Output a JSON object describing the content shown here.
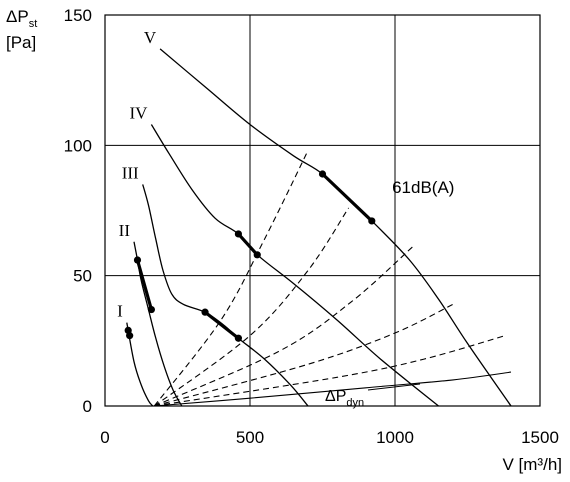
{
  "chart_data": {
    "type": "line",
    "title": "",
    "ylabel": {
      "symbol": "ΔP",
      "sub": "st",
      "unit": "[Pa]"
    },
    "xlabel": "V [m³/h]",
    "xlim": [
      0,
      1500
    ],
    "ylim": [
      0,
      150
    ],
    "x_ticks": [
      0,
      500,
      1000,
      1500
    ],
    "y_ticks": [
      0,
      50,
      100,
      150
    ],
    "grid": true,
    "series": [
      {
        "name": "I",
        "points": [
          [
            75,
            32
          ],
          [
            100,
            17
          ],
          [
            125,
            8
          ],
          [
            150,
            2
          ],
          [
            165,
            0
          ]
        ],
        "markers": [
          [
            80,
            29
          ],
          [
            85,
            27
          ]
        ]
      },
      {
        "name": "II",
        "points": [
          [
            100,
            63
          ],
          [
            112,
            56
          ],
          [
            125,
            48
          ],
          [
            150,
            37
          ],
          [
            175,
            26
          ],
          [
            205,
            15
          ],
          [
            235,
            6
          ],
          [
            265,
            0
          ]
        ],
        "markers": [
          [
            112,
            56
          ],
          [
            160,
            37
          ]
        ]
      },
      {
        "name": "III",
        "points": [
          [
            130,
            85
          ],
          [
            150,
            77
          ],
          [
            175,
            64
          ],
          [
            200,
            52
          ],
          [
            230,
            43
          ],
          [
            270,
            39
          ],
          [
            345,
            36
          ],
          [
            410,
            31
          ],
          [
            460,
            26
          ],
          [
            550,
            18
          ],
          [
            640,
            8
          ],
          [
            700,
            0
          ]
        ],
        "markers": [
          [
            345,
            36
          ],
          [
            460,
            26
          ]
        ]
      },
      {
        "name": "IV",
        "points": [
          [
            160,
            108
          ],
          [
            220,
            97
          ],
          [
            300,
            83
          ],
          [
            380,
            72
          ],
          [
            460,
            66
          ],
          [
            525,
            58
          ],
          [
            650,
            47
          ],
          [
            800,
            33
          ],
          [
            950,
            18
          ],
          [
            1150,
            0
          ]
        ],
        "markers": [
          [
            460,
            66
          ],
          [
            525,
            58
          ]
        ]
      },
      {
        "name": "V",
        "points": [
          [
            190,
            137
          ],
          [
            350,
            122
          ],
          [
            500,
            108
          ],
          [
            650,
            96
          ],
          [
            750,
            89
          ],
          [
            850,
            78
          ],
          [
            920,
            71
          ],
          [
            1050,
            56
          ],
          [
            1150,
            41
          ],
          [
            1250,
            24
          ],
          [
            1400,
            0
          ]
        ],
        "markers": [
          [
            750,
            89
          ],
          [
            920,
            71
          ]
        ]
      }
    ],
    "dashed_lines": [
      {
        "points": [
          [
            170,
            0
          ],
          [
            400,
            33
          ],
          [
            550,
            64
          ],
          [
            700,
            98
          ]
        ]
      },
      {
        "points": [
          [
            170,
            0
          ],
          [
            500,
            27
          ],
          [
            700,
            52
          ],
          [
            840,
            76
          ]
        ]
      },
      {
        "points": [
          [
            170,
            0
          ],
          [
            600,
            21
          ],
          [
            850,
            40
          ],
          [
            1060,
            61
          ]
        ]
      },
      {
        "points": [
          [
            170,
            0
          ],
          [
            700,
            16
          ],
          [
            1000,
            28
          ],
          [
            1200,
            39
          ]
        ]
      },
      {
        "points": [
          [
            170,
            0
          ],
          [
            800,
            11
          ],
          [
            1100,
            18
          ],
          [
            1380,
            27
          ]
        ]
      }
    ],
    "dynamic_pressure_curve": {
      "label": {
        "symbol": "ΔP",
        "sub": "dyn"
      },
      "points": [
        [
          170,
          0
        ],
        [
          500,
          3
        ],
        [
          900,
          7
        ],
        [
          1200,
          10
        ],
        [
          1400,
          13
        ]
      ]
    },
    "annotations": [
      {
        "text": "61dB(A)",
        "x": 990,
        "y": 84
      }
    ]
  }
}
